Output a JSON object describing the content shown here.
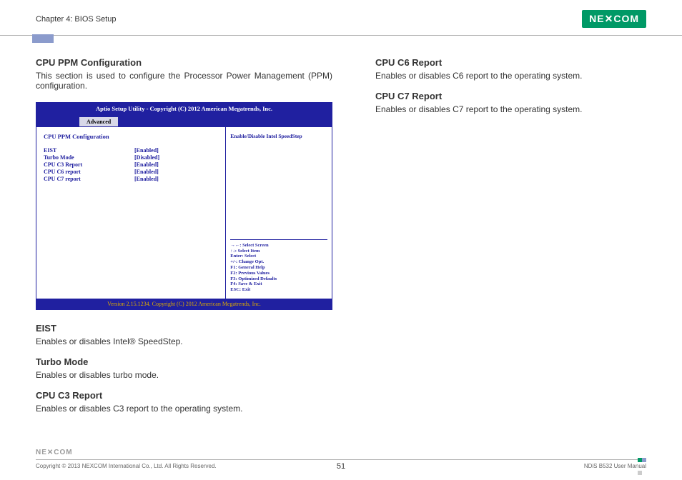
{
  "header": {
    "chapter": "Chapter 4: BIOS Setup",
    "logo": "NE✕COM"
  },
  "left": {
    "title": "CPU PPM Configuration",
    "intro": "This section is used to configure the Processor Power Management (PPM) configuration.",
    "items": [
      {
        "h": "EIST",
        "d": "Enables or disables Intel® SpeedStep."
      },
      {
        "h": "Turbo Mode",
        "d": "Enables or disables turbo mode."
      },
      {
        "h": "CPU C3 Report",
        "d": "Enables or disables C3 report to the operating system."
      }
    ]
  },
  "right": {
    "items": [
      {
        "h": "CPU C6 Report",
        "d": "Enables or disables C6 report to the operating system."
      },
      {
        "h": "CPU C7 Report",
        "d": "Enables or disables C7 report to the operating system."
      }
    ]
  },
  "bios": {
    "top": "Aptio Setup Utility - Copyright (C) 2012 American Megatrends, Inc.",
    "tab": "Advanced",
    "section": "CPU PPM Configuration",
    "rows": [
      {
        "label": "EIST",
        "value": "[Enabled]"
      },
      {
        "label": "Turbo Mode",
        "value": "[Disabled]"
      },
      {
        "label": "CPU C3 Report",
        "value": "[Enabled]"
      },
      {
        "label": "CPU C6 report",
        "value": "[Enabled]"
      },
      {
        "label": "CPU C7 report",
        "value": "[Enabled]"
      }
    ],
    "help": "Enable/Disable Intel SpeedStep",
    "keys": [
      "→←: Select Screen",
      "↑↓: Select Item",
      "Enter: Select",
      "+/-: Change Opt.",
      "F1: General Help",
      "F2: Previous Values",
      "F3: Optimized Defaults",
      "F4: Save & Exit",
      "ESC: Exit"
    ],
    "bottom": "Version 2.15.1234. Copyright (C) 2012 American Megatrends, Inc."
  },
  "footer": {
    "logo": "NE✕COM",
    "copyright": "Copyright © 2013 NEXCOM International Co., Ltd. All Rights Reserved.",
    "page": "51",
    "manual": "NDiS B532 User Manual"
  }
}
